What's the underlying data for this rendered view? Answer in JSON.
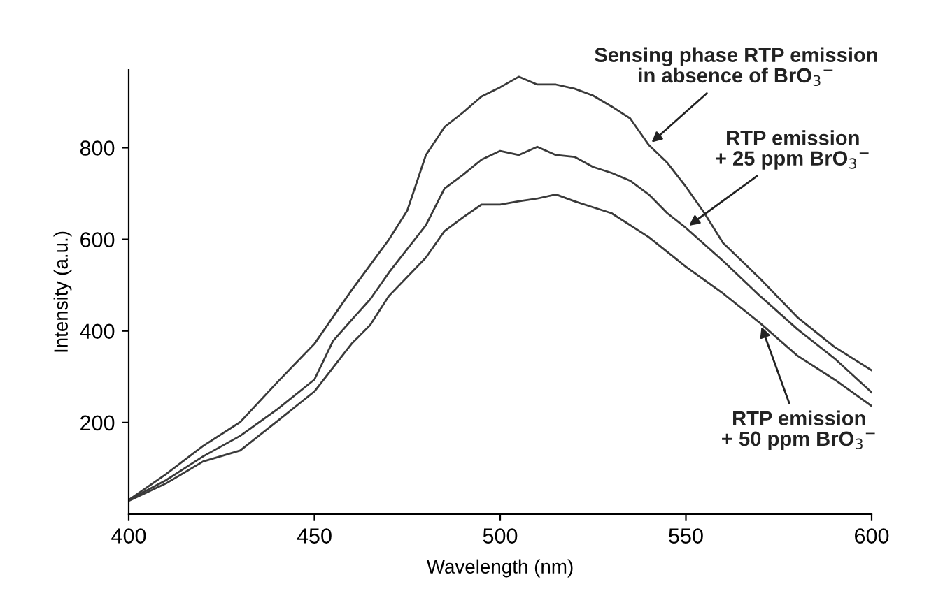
{
  "chart_data": {
    "type": "line",
    "xlabel": "Wavelength (nm)",
    "ylabel": "Intensity (a.u.)",
    "xlim": [
      400,
      600
    ],
    "xticks": [
      400,
      450,
      500,
      550,
      600
    ],
    "ylim": [
      0,
      970
    ],
    "yticks": [
      200,
      400,
      600,
      800
    ],
    "grid": false,
    "legend": false,
    "marker": "none",
    "line_style": "solid",
    "series": [
      {
        "color": "#3a3a3a",
        "x": [
          400,
          410,
          420,
          430,
          440,
          450,
          460,
          470,
          475,
          480,
          485,
          490,
          495,
          500,
          505,
          510,
          515,
          520,
          525,
          530,
          535,
          540,
          545,
          550,
          555,
          560,
          570,
          580,
          590,
          600
        ],
        "values": [
          31,
          87,
          149,
          201,
          288,
          372,
          489,
          599,
          663,
          784,
          845,
          877,
          912,
          932,
          955,
          938,
          938,
          929,
          914,
          890,
          864,
          806,
          767,
          715,
          657,
          592,
          514,
          430,
          365,
          314
        ]
      },
      {
        "color": "#3a3a3a",
        "x": [
          400,
          410,
          420,
          430,
          440,
          450,
          455,
          460,
          465,
          470,
          480,
          485,
          490,
          495,
          500,
          505,
          510,
          515,
          520,
          525,
          530,
          535,
          540,
          545,
          550,
          560,
          570,
          580,
          590,
          600
        ],
        "values": [
          31,
          74,
          126,
          171,
          229,
          294,
          378,
          424,
          469,
          527,
          631,
          711,
          741,
          774,
          793,
          784,
          802,
          784,
          780,
          758,
          745,
          728,
          698,
          657,
          625,
          553,
          476,
          404,
          340,
          266
        ]
      },
      {
        "color": "#3a3a3a",
        "x": [
          400,
          410,
          420,
          430,
          440,
          450,
          460,
          465,
          470,
          480,
          485,
          490,
          495,
          500,
          505,
          510,
          515,
          520,
          525,
          530,
          540,
          550,
          560,
          570,
          580,
          590,
          600
        ],
        "values": [
          29,
          67,
          115,
          139,
          203,
          268,
          372,
          413,
          476,
          560,
          618,
          648,
          676,
          676,
          683,
          689,
          698,
          683,
          670,
          657,
          605,
          540,
          482,
          417,
          346,
          294,
          236
        ]
      }
    ],
    "annotations": [
      {
        "text": "Sensing phase RTP emission\nin absence of BrO$_{3}$$^{−}$",
        "x": 540,
        "y": 806
      },
      {
        "text": "RTP emission\n+ 25 ppm BrO$_{3}$$^{−}$",
        "x": 550,
        "y": 625
      },
      {
        "text": "RTP emission\n+ 50 ppm BrO$_{3}$$^{−}$",
        "x": 570,
        "y": 417
      }
    ]
  }
}
